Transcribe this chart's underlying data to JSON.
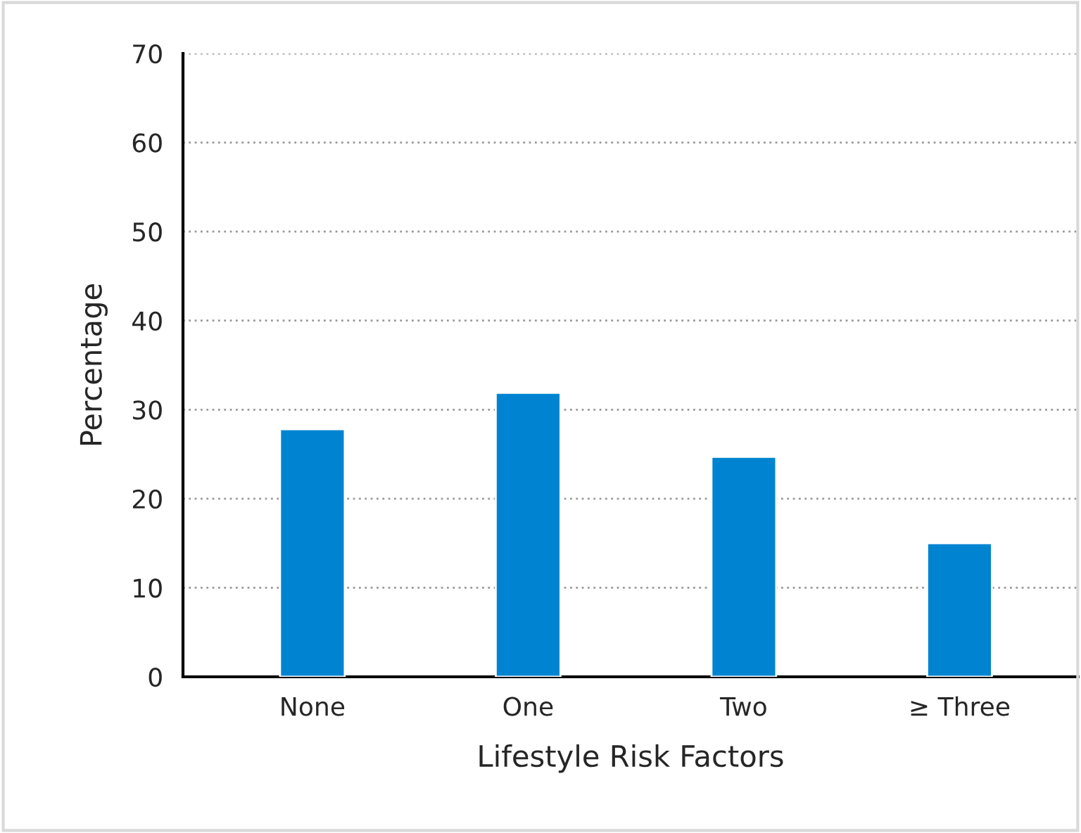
{
  "chart_data": {
    "type": "bar",
    "xlabel": "Lifestyle Risk Factors",
    "ylabel": "Percentage",
    "categories": [
      "None",
      "One",
      "Two",
      "≥ Three"
    ],
    "values": [
      27.8,
      31.9,
      24.7,
      15.0
    ],
    "color": "#0084d1",
    "ylim": [
      0,
      70
    ],
    "yticks": [
      0,
      10,
      20,
      30,
      40,
      50,
      60,
      70
    ],
    "grid": "y"
  }
}
